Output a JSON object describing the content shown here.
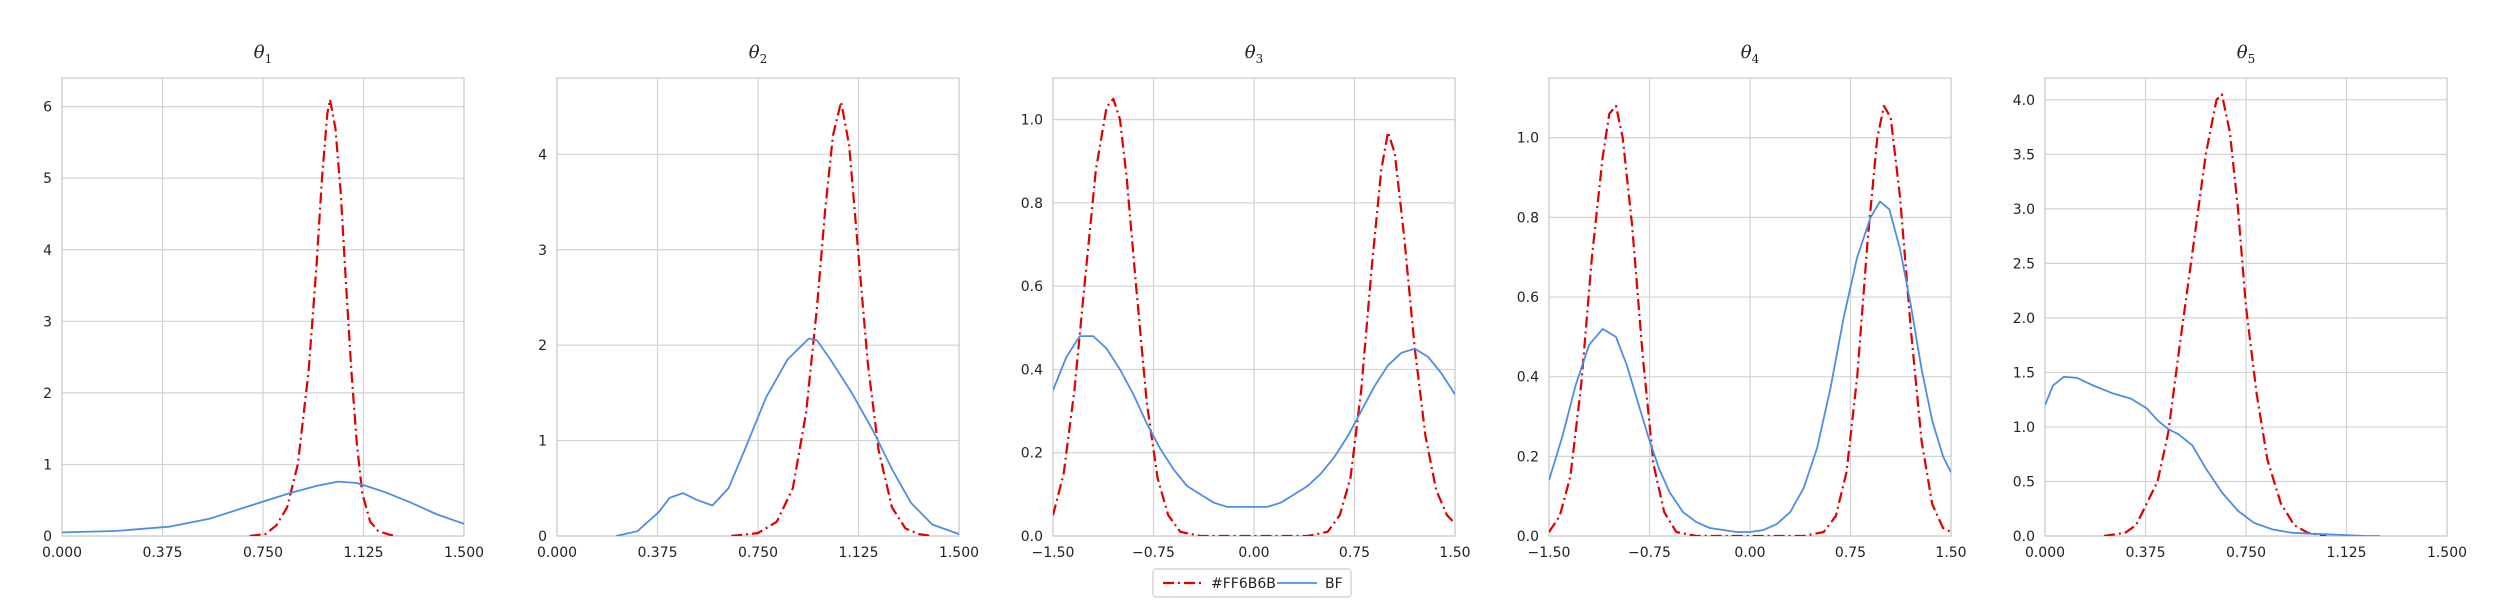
{
  "chart_data": [
    {
      "type": "line",
      "title": "θ",
      "title_subscript": "1",
      "xlim": [
        0,
        1.5
      ],
      "ylim": [
        0,
        6.4
      ],
      "xticks": [
        0,
        0.375,
        0.75,
        1.125,
        1.5
      ],
      "xtick_labels": [
        "0.000",
        "0.375",
        "0.750",
        "1.125",
        "1.500"
      ],
      "yticks": [
        0,
        1,
        2,
        3,
        4,
        5,
        6
      ],
      "ytick_labels": [
        "0",
        "1",
        "2",
        "3",
        "4",
        "5",
        "6"
      ],
      "series": [
        {
          "name": "#FF6B6B",
          "style": "dashdot",
          "color": "#e00000",
          "x": [
            0.7,
            0.76,
            0.8,
            0.84,
            0.88,
            0.92,
            0.95,
            0.97,
            0.99,
            1.0,
            1.02,
            1.04,
            1.06,
            1.08,
            1.1,
            1.12,
            1.15,
            1.18,
            1.22,
            1.25
          ],
          "y": [
            0.0,
            0.03,
            0.15,
            0.4,
            1.0,
            2.3,
            3.8,
            5.0,
            5.9,
            6.1,
            5.7,
            4.8,
            3.5,
            2.3,
            1.3,
            0.6,
            0.2,
            0.07,
            0.02,
            0.0
          ]
        },
        {
          "name": "BF",
          "style": "solid",
          "color": "#4c8ee6",
          "x": [
            0.0,
            0.2,
            0.4,
            0.55,
            0.7,
            0.85,
            0.95,
            1.03,
            1.1,
            1.2,
            1.3,
            1.4,
            1.5
          ],
          "y": [
            0.05,
            0.07,
            0.13,
            0.24,
            0.42,
            0.6,
            0.7,
            0.76,
            0.74,
            0.62,
            0.47,
            0.3,
            0.17
          ]
        }
      ]
    },
    {
      "type": "line",
      "title": "θ",
      "title_subscript": "2",
      "xlim": [
        0,
        1.5
      ],
      "ylim": [
        0,
        4.8
      ],
      "xticks": [
        0,
        0.375,
        0.75,
        1.125,
        1.5
      ],
      "xtick_labels": [
        "0.000",
        "0.375",
        "0.750",
        "1.125",
        "1.500"
      ],
      "yticks": [
        0,
        1,
        2,
        3,
        4
      ],
      "ytick_labels": [
        "0",
        "1",
        "2",
        "3",
        "4"
      ],
      "series": [
        {
          "name": "#FF6B6B",
          "style": "dashdot",
          "color": "#e00000",
          "x": [
            0.65,
            0.75,
            0.82,
            0.88,
            0.93,
            0.97,
            1.0,
            1.03,
            1.06,
            1.09,
            1.12,
            1.16,
            1.2,
            1.25,
            1.3,
            1.35,
            1.4
          ],
          "y": [
            0.0,
            0.03,
            0.15,
            0.5,
            1.3,
            2.4,
            3.4,
            4.2,
            4.55,
            4.1,
            3.1,
            1.8,
            0.9,
            0.3,
            0.08,
            0.02,
            0.0
          ]
        },
        {
          "name": "BF",
          "style": "solid",
          "color": "#4c8ee6",
          "x": [
            0.22,
            0.3,
            0.38,
            0.42,
            0.47,
            0.52,
            0.58,
            0.64,
            0.7,
            0.78,
            0.86,
            0.94,
            0.97,
            1.02,
            1.1,
            1.18,
            1.25,
            1.32,
            1.4,
            1.5
          ],
          "y": [
            0.0,
            0.05,
            0.25,
            0.4,
            0.45,
            0.38,
            0.32,
            0.5,
            0.9,
            1.45,
            1.85,
            2.07,
            2.05,
            1.85,
            1.5,
            1.1,
            0.7,
            0.35,
            0.12,
            0.02
          ]
        }
      ]
    },
    {
      "type": "line",
      "title": "θ",
      "title_subscript": "3",
      "xlim": [
        -1.5,
        1.5
      ],
      "ylim": [
        0,
        1.1
      ],
      "xticks": [
        -1.5,
        -0.75,
        0,
        0.75,
        1.5
      ],
      "xtick_labels": [
        "−1.50",
        "−0.75",
        "0.00",
        "0.75",
        "1.50"
      ],
      "yticks": [
        0,
        0.2,
        0.4,
        0.6,
        0.8,
        1.0
      ],
      "ytick_labels": [
        "0.0",
        "0.2",
        "0.4",
        "0.6",
        "0.8",
        "1.0"
      ],
      "series": [
        {
          "name": "#FF6B6B",
          "style": "dashdot",
          "color": "#e00000",
          "x": [
            -1.5,
            -1.42,
            -1.34,
            -1.26,
            -1.18,
            -1.1,
            -1.05,
            -1.0,
            -0.95,
            -0.88,
            -0.8,
            -0.72,
            -0.64,
            -0.55,
            -0.4,
            -0.2,
            0.0,
            0.2,
            0.4,
            0.55,
            0.64,
            0.72,
            0.8,
            0.88,
            0.95,
            1.0,
            1.05,
            1.12,
            1.2,
            1.28,
            1.36,
            1.44,
            1.5
          ],
          "y": [
            0.05,
            0.15,
            0.35,
            0.62,
            0.88,
            1.03,
            1.05,
            1.0,
            0.86,
            0.6,
            0.32,
            0.14,
            0.05,
            0.01,
            0.0,
            0.0,
            0.0,
            0.0,
            0.0,
            0.01,
            0.05,
            0.14,
            0.35,
            0.65,
            0.88,
            0.97,
            0.92,
            0.72,
            0.45,
            0.24,
            0.11,
            0.05,
            0.03
          ]
        },
        {
          "name": "BF",
          "style": "solid",
          "color": "#4c8ee6",
          "x": [
            -1.5,
            -1.4,
            -1.3,
            -1.2,
            -1.1,
            -1.0,
            -0.9,
            -0.8,
            -0.7,
            -0.6,
            -0.5,
            -0.4,
            -0.3,
            -0.2,
            -0.1,
            0.0,
            0.1,
            0.2,
            0.3,
            0.4,
            0.5,
            0.6,
            0.7,
            0.8,
            0.9,
            1.0,
            1.1,
            1.2,
            1.3,
            1.4,
            1.5
          ],
          "y": [
            0.35,
            0.43,
            0.48,
            0.48,
            0.45,
            0.4,
            0.34,
            0.27,
            0.21,
            0.16,
            0.12,
            0.1,
            0.08,
            0.07,
            0.07,
            0.07,
            0.07,
            0.08,
            0.1,
            0.12,
            0.15,
            0.19,
            0.24,
            0.3,
            0.36,
            0.41,
            0.44,
            0.45,
            0.43,
            0.39,
            0.34
          ]
        }
      ]
    },
    {
      "type": "line",
      "title": "θ",
      "title_subscript": "4",
      "xlim": [
        -1.5,
        1.5
      ],
      "ylim": [
        0,
        1.15
      ],
      "xticks": [
        -1.5,
        -0.75,
        0,
        0.75,
        1.5
      ],
      "xtick_labels": [
        "−1.50",
        "−0.75",
        "0.00",
        "0.75",
        "1.50"
      ],
      "yticks": [
        0,
        0.2,
        0.4,
        0.6,
        0.8,
        1.0
      ],
      "ytick_labels": [
        "0.0",
        "0.2",
        "0.4",
        "0.6",
        "0.8",
        "1.0"
      ],
      "series": [
        {
          "name": "#FF6B6B",
          "style": "dashdot",
          "color": "#e00000",
          "x": [
            -1.5,
            -1.42,
            -1.34,
            -1.26,
            -1.18,
            -1.1,
            -1.05,
            -1.0,
            -0.95,
            -0.88,
            -0.8,
            -0.72,
            -0.64,
            -0.55,
            -0.4,
            -0.2,
            0.0,
            0.2,
            0.4,
            0.55,
            0.64,
            0.72,
            0.8,
            0.88,
            0.95,
            1.0,
            1.05,
            1.12,
            1.2,
            1.28,
            1.36,
            1.44,
            1.5
          ],
          "y": [
            0.01,
            0.05,
            0.15,
            0.38,
            0.7,
            0.95,
            1.06,
            1.08,
            1.0,
            0.78,
            0.45,
            0.18,
            0.06,
            0.01,
            0.0,
            0.0,
            0.0,
            0.0,
            0.0,
            0.01,
            0.05,
            0.16,
            0.4,
            0.75,
            1.0,
            1.08,
            1.05,
            0.85,
            0.52,
            0.24,
            0.08,
            0.02,
            0.01
          ]
        },
        {
          "name": "BF",
          "style": "solid",
          "color": "#4c8ee6",
          "x": [
            -1.5,
            -1.4,
            -1.3,
            -1.2,
            -1.1,
            -1.0,
            -0.92,
            -0.84,
            -0.76,
            -0.68,
            -0.6,
            -0.5,
            -0.4,
            -0.3,
            -0.2,
            -0.1,
            0.0,
            0.1,
            0.2,
            0.3,
            0.4,
            0.5,
            0.6,
            0.7,
            0.8,
            0.9,
            0.97,
            1.04,
            1.12,
            1.2,
            1.28,
            1.36,
            1.44,
            1.5
          ],
          "y": [
            0.14,
            0.25,
            0.38,
            0.48,
            0.52,
            0.5,
            0.43,
            0.34,
            0.25,
            0.17,
            0.11,
            0.06,
            0.035,
            0.02,
            0.015,
            0.01,
            0.01,
            0.015,
            0.03,
            0.06,
            0.12,
            0.22,
            0.37,
            0.55,
            0.7,
            0.8,
            0.84,
            0.82,
            0.72,
            0.58,
            0.42,
            0.29,
            0.2,
            0.16
          ]
        }
      ]
    },
    {
      "type": "line",
      "title": "θ",
      "title_subscript": "5",
      "xlim": [
        0,
        1.5
      ],
      "ylim": [
        0,
        4.2
      ],
      "xticks": [
        0,
        0.375,
        0.75,
        1.125,
        1.5
      ],
      "xtick_labels": [
        "0.000",
        "0.375",
        "0.750",
        "1.125",
        "1.500"
      ],
      "yticks": [
        0,
        0.5,
        1.0,
        1.5,
        2.0,
        2.5,
        3.0,
        3.5,
        4.0
      ],
      "ytick_labels": [
        "0.0",
        "0.5",
        "1.0",
        "1.5",
        "2.0",
        "2.5",
        "3.0",
        "3.5",
        "4.0"
      ],
      "series": [
        {
          "name": "#FF6B6B",
          "style": "dashdot",
          "color": "#e00000",
          "x": [
            0.22,
            0.3,
            0.34,
            0.38,
            0.42,
            0.46,
            0.5,
            0.55,
            0.6,
            0.64,
            0.66,
            0.69,
            0.72,
            0.75,
            0.79,
            0.83,
            0.88,
            0.93,
            0.98,
            1.05
          ],
          "y": [
            0.0,
            0.03,
            0.1,
            0.3,
            0.5,
            0.95,
            1.7,
            2.6,
            3.5,
            4.0,
            4.05,
            3.7,
            3.0,
            2.1,
            1.3,
            0.7,
            0.3,
            0.1,
            0.03,
            0.0
          ]
        },
        {
          "name": "BF",
          "style": "solid",
          "color": "#4c8ee6",
          "x": [
            0.0,
            0.03,
            0.07,
            0.12,
            0.18,
            0.25,
            0.32,
            0.38,
            0.42,
            0.46,
            0.5,
            0.55,
            0.6,
            0.66,
            0.72,
            0.78,
            0.85,
            0.92,
            1.0,
            1.1,
            1.2,
            1.25
          ],
          "y": [
            1.2,
            1.38,
            1.46,
            1.45,
            1.38,
            1.31,
            1.26,
            1.17,
            1.06,
            0.98,
            0.93,
            0.83,
            0.62,
            0.4,
            0.23,
            0.12,
            0.06,
            0.03,
            0.02,
            0.01,
            0.0,
            0.0
          ]
        }
      ]
    }
  ],
  "legend": {
    "placement": "bottom-center",
    "entries": [
      {
        "label": "#FF6B6B",
        "style": "dashdot",
        "color": "#e00000"
      },
      {
        "label": "BF",
        "style": "solid",
        "color": "#4c8ee6"
      }
    ]
  }
}
